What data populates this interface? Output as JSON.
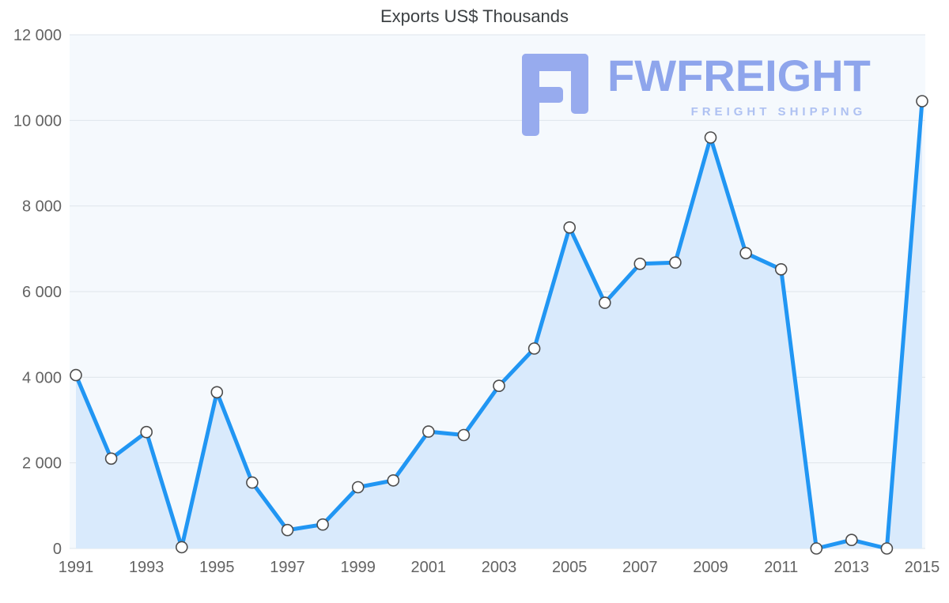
{
  "watermark": {
    "brand": "FWFREIGHT",
    "tagline": "FREIGHT SHIPPING",
    "brand_color": "#8ea5ec",
    "tagline_color": "#aec1f2",
    "icon_color": "#97abee"
  },
  "chart_data": {
    "type": "line",
    "title": "Exports US$ Thousands",
    "xlabel": "",
    "ylabel": "",
    "x": [
      1991,
      1992,
      1993,
      1994,
      1995,
      1996,
      1997,
      1998,
      1999,
      2000,
      2001,
      2002,
      2003,
      2004,
      2005,
      2006,
      2007,
      2008,
      2009,
      2010,
      2011,
      2012,
      2013,
      2014,
      2015
    ],
    "values": [
      4050,
      2100,
      2720,
      30,
      3650,
      1540,
      430,
      560,
      1430,
      1590,
      2730,
      2650,
      3800,
      4670,
      7500,
      5740,
      6650,
      6680,
      9600,
      6900,
      6520,
      0,
      200,
      0,
      10450
    ],
    "ylim": [
      0,
      12000
    ],
    "yticks": [
      0,
      2000,
      4000,
      6000,
      8000,
      10000,
      12000
    ],
    "ytick_labels": [
      "0",
      "2 000",
      "4 000",
      "6 000",
      "8 000",
      "10 000",
      "12 000"
    ],
    "xticks": [
      1991,
      1993,
      1995,
      1997,
      1999,
      2001,
      2003,
      2005,
      2007,
      2009,
      2011,
      2013,
      2015
    ],
    "grid": true,
    "legend": "none",
    "marker": "circle",
    "area_fill": true,
    "colors": {
      "line": "#2196f3",
      "fill": "#d9eafc",
      "plot_bg": "#f5f9fd",
      "grid": "#dfe5ec",
      "marker_fill": "#ffffff",
      "marker_stroke": "#4d4d4d",
      "axis_text": "#636363",
      "title": "#3c4043"
    }
  }
}
